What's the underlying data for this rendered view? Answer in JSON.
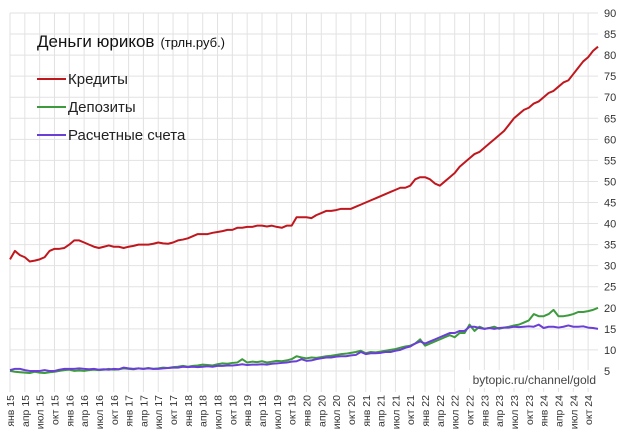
{
  "chart_data": {
    "type": "line",
    "title": "Деньги юриков",
    "subtitle": "(трлн.руб.)",
    "watermark": "bytopic.ru/channel/gold",
    "categories": [
      "янв 15",
      null,
      null,
      "апр 15",
      null,
      null,
      "июл 15",
      null,
      null,
      "окт 15",
      null,
      null,
      "янв 16",
      null,
      null,
      "апр 16",
      null,
      null,
      "июл 16",
      null,
      null,
      "окт 16",
      null,
      null,
      "янв 17",
      null,
      null,
      "апр 17",
      null,
      null,
      "июл 17",
      null,
      null,
      "окт 17",
      null,
      null,
      "янв 18",
      null,
      null,
      "апр 18",
      null,
      null,
      "июл 18",
      null,
      null,
      "окт 18",
      null,
      null,
      "янв 19",
      null,
      null,
      "апр 19",
      null,
      null,
      "июл 19",
      null,
      null,
      "окт 19",
      null,
      null,
      "янв 20",
      null,
      null,
      "апр 20",
      null,
      null,
      "июл 20",
      null,
      null,
      "окт 20",
      null,
      null,
      "янв 21",
      null,
      null,
      "апр 21",
      null,
      null,
      "июл 21",
      null,
      null,
      "окт 21",
      null,
      null,
      "янв 22",
      null,
      null,
      "апр 22",
      null,
      null,
      "июл 22",
      null,
      null,
      "окт 22",
      null,
      null,
      "янв 23",
      null,
      null,
      "апр 23",
      null,
      null,
      "июл 23",
      null,
      null,
      "окт 23",
      null,
      null,
      "янв 24",
      null,
      null,
      "апр 24",
      null,
      null,
      "июл 24",
      null,
      null,
      "окт 24",
      null,
      null
    ],
    "series": [
      {
        "name": "Кредиты",
        "color": "#c0171e",
        "values": [
          31.5,
          33.5,
          32.5,
          32,
          31,
          31.2,
          31.5,
          32,
          33.5,
          34,
          34,
          34.2,
          35,
          36,
          36,
          35.5,
          35,
          34.5,
          34.2,
          34.5,
          34.8,
          34.5,
          34.5,
          34.2,
          34.5,
          34.7,
          35,
          35,
          35,
          35.2,
          35.5,
          35.3,
          35.2,
          35.5,
          36,
          36.2,
          36.5,
          37,
          37.5,
          37.5,
          37.5,
          37.8,
          38,
          38.2,
          38.5,
          38.5,
          39,
          39,
          39.2,
          39.2,
          39.5,
          39.5,
          39.3,
          39.5,
          39.2,
          39,
          39.5,
          39.5,
          41.5,
          41.5,
          41.5,
          41.3,
          42,
          42.5,
          43,
          43,
          43.2,
          43.5,
          43.5,
          43.5,
          44,
          44.5,
          45,
          45.5,
          46,
          46.5,
          47,
          47.5,
          48,
          48.5,
          48.5,
          49,
          50.5,
          51,
          51,
          50.5,
          49.5,
          49,
          50,
          51,
          52,
          53.5,
          54.5,
          55.5,
          56.5,
          57,
          58,
          59,
          60,
          61,
          62,
          63.5,
          65,
          66,
          67,
          67.5,
          68.5,
          69,
          70,
          71,
          71.5,
          72.5,
          73.5,
          74,
          75.5,
          77,
          78.5,
          79.5,
          81,
          82
        ]
      },
      {
        "name": "Депозиты",
        "color": "#3d9a3d",
        "values": [
          5,
          4.8,
          4.7,
          4.6,
          4.5,
          4.8,
          4.6,
          4.5,
          4.7,
          4.8,
          5,
          5.2,
          5.3,
          5,
          5.1,
          5,
          5.2,
          5.3,
          5.2,
          5.3,
          5.5,
          5.3,
          5.4,
          5.6,
          5.5,
          5.4,
          5.6,
          5.5,
          5.7,
          5.5,
          5.6,
          5.8,
          5.7,
          5.9,
          6,
          6.2,
          6,
          6.2,
          6.3,
          6.5,
          6.4,
          6.3,
          6.6,
          6.8,
          6.7,
          6.9,
          7,
          7.8,
          7,
          7.2,
          7.1,
          7.3,
          7,
          7.2,
          7.4,
          7.3,
          7.5,
          7.8,
          8.5,
          8.2,
          8,
          8.2,
          8.1,
          8.3,
          8.5,
          8.6,
          8.8,
          9,
          9.1,
          9.3,
          9.5,
          9.8,
          9.2,
          9.5,
          9.4,
          9.6,
          9.8,
          10,
          10.2,
          10.5,
          10.8,
          11,
          11.5,
          12.5,
          11,
          11.5,
          12,
          12.5,
          13,
          13.5,
          13,
          14,
          14,
          16,
          14.5,
          15.5,
          15,
          15.2,
          15.5,
          15,
          15.3,
          15.5,
          15.8,
          16,
          16.5,
          17,
          18.5,
          18,
          18,
          18.5,
          19.5,
          18,
          18,
          18.2,
          18.5,
          19,
          19,
          19.2,
          19.5,
          20
        ]
      },
      {
        "name": "Расчетные счета",
        "color": "#6a3fd6",
        "values": [
          5.2,
          5.5,
          5.5,
          5.2,
          5,
          5,
          5,
          5.2,
          5,
          5,
          5.3,
          5.5,
          5.5,
          5.5,
          5.6,
          5.5,
          5.4,
          5.5,
          5.3,
          5.4,
          5.3,
          5.5,
          5.4,
          5.8,
          5.6,
          5.5,
          5.6,
          5.5,
          5.6,
          5.5,
          5.5,
          5.6,
          5.7,
          5.8,
          5.8,
          6,
          5.9,
          6,
          5.9,
          6,
          6.1,
          6,
          6.2,
          6.2,
          6.3,
          6.3,
          6.4,
          6.6,
          6.4,
          6.5,
          6.5,
          6.6,
          6.5,
          6.7,
          6.8,
          6.9,
          7,
          7.2,
          7.3,
          7.8,
          7.4,
          7.5,
          7.8,
          8,
          8.2,
          8.2,
          8.4,
          8.5,
          8.5,
          8.7,
          8.8,
          9.5,
          9,
          9.2,
          9.2,
          9.3,
          9.5,
          9.5,
          9.8,
          10,
          10.5,
          10.8,
          11.5,
          12,
          11.5,
          12,
          12.5,
          13,
          13.5,
          14,
          14,
          14.5,
          14.5,
          15.5,
          15.5,
          15.2,
          15,
          15.2,
          15,
          15.2,
          15.3,
          15.3,
          15.5,
          15.4,
          15.5,
          15.6,
          15.5,
          16,
          15.2,
          15.5,
          15.5,
          15.3,
          15.5,
          15.8,
          15.5,
          15.5,
          15.6,
          15.3,
          15.2,
          15
        ]
      }
    ],
    "ylim": [
      0,
      90
    ],
    "yticks": [
      5,
      10,
      15,
      20,
      25,
      30,
      35,
      40,
      45,
      50,
      55,
      60,
      65,
      70,
      75,
      80,
      85,
      90
    ],
    "grid": true,
    "legend": "upper left"
  }
}
